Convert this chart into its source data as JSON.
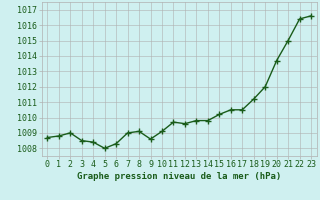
{
  "x": [
    0,
    1,
    2,
    3,
    4,
    5,
    6,
    7,
    8,
    9,
    10,
    11,
    12,
    13,
    14,
    15,
    16,
    17,
    18,
    19,
    20,
    21,
    22,
    23
  ],
  "y": [
    1008.7,
    1008.8,
    1009.0,
    1008.5,
    1008.4,
    1008.0,
    1008.3,
    1009.0,
    1009.1,
    1008.6,
    1009.1,
    1009.7,
    1009.6,
    1009.8,
    1009.8,
    1010.2,
    1010.5,
    1010.5,
    1011.2,
    1012.0,
    1013.7,
    1015.0,
    1016.4,
    1016.6
  ],
  "xlim": [
    -0.5,
    23.5
  ],
  "ylim": [
    1007.5,
    1017.5
  ],
  "yticks": [
    1008,
    1009,
    1010,
    1011,
    1012,
    1013,
    1014,
    1015,
    1016,
    1017
  ],
  "xticks": [
    0,
    1,
    2,
    3,
    4,
    5,
    6,
    7,
    8,
    9,
    10,
    11,
    12,
    13,
    14,
    15,
    16,
    17,
    18,
    19,
    20,
    21,
    22,
    23
  ],
  "line_color": "#1a5c1a",
  "marker_color": "#1a5c1a",
  "bg_color": "#cff0f0",
  "grid_color": "#b0b0b0",
  "xlabel": "Graphe pression niveau de la mer (hPa)",
  "xlabel_color": "#1a5c1a",
  "marker": "+",
  "linewidth": 1.0,
  "markersize": 4,
  "tick_fontsize": 6.0,
  "xlabel_fontsize": 6.5
}
